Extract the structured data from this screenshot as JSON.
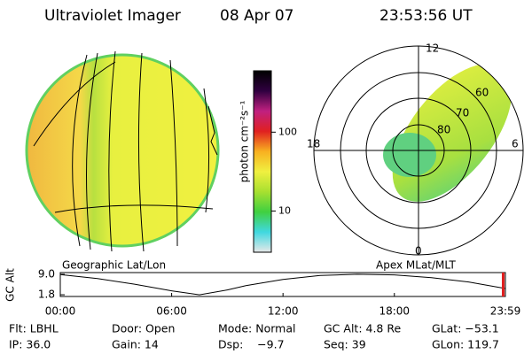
{
  "header": {
    "title": "Ultraviolet Imager",
    "date": "08 Apr 07",
    "time": "23:53:56 UT"
  },
  "globe": {
    "label": "Geographic Lat/Lon"
  },
  "colorbar": {
    "label": "photon cm⁻²s⁻¹",
    "log": true,
    "ylim": [
      3,
      600
    ],
    "yticks": [
      10,
      100
    ],
    "colors": [
      "#e8e8e8",
      "#40d8e0",
      "#40d040",
      "#a8e030",
      "#f0f040",
      "#f8b020",
      "#e02020",
      "#c02080",
      "#300040",
      "#000000"
    ]
  },
  "polar": {
    "label": "Apex MLat/MLT",
    "mlt_labels": [
      "12",
      "18",
      "6",
      "0"
    ],
    "lat_labels": [
      "60",
      "70",
      "80"
    ]
  },
  "altitude": {
    "label": "GC Alt",
    "xlim": [
      0,
      23.983
    ],
    "ylim": [
      1.2,
      9.6
    ],
    "yticks": [
      {
        "value": 9,
        "label": "9.0"
      },
      {
        "value": 1.8,
        "label": "1.8"
      }
    ],
    "xticks": [
      {
        "value": 0,
        "label": "00:00"
      },
      {
        "value": 6,
        "label": "06:00"
      },
      {
        "value": 12,
        "label": "12:00"
      },
      {
        "value": 18,
        "label": "18:00"
      },
      {
        "value": 23.983,
        "label": "23:59"
      }
    ],
    "x": [
      0,
      2,
      4,
      6,
      7.5,
      9,
      10,
      12,
      14,
      16,
      18,
      20,
      22,
      23.983
    ],
    "values": [
      8.9,
      7.5,
      5.5,
      3.2,
      1.8,
      3.5,
      5.0,
      7.2,
      8.6,
      9.0,
      8.8,
      7.8,
      6.3,
      4.0
    ]
  },
  "info": [
    [
      "Flt: LBHL",
      "Door: Open",
      "Mode: Normal",
      "GC Alt: 4.8 Re",
      "GLat: −53.1"
    ],
    [
      "IP: 36.0",
      "Gain: 14",
      "Dsp:    −9.7",
      "Seq: 39",
      "GLon: 119.7"
    ]
  ]
}
